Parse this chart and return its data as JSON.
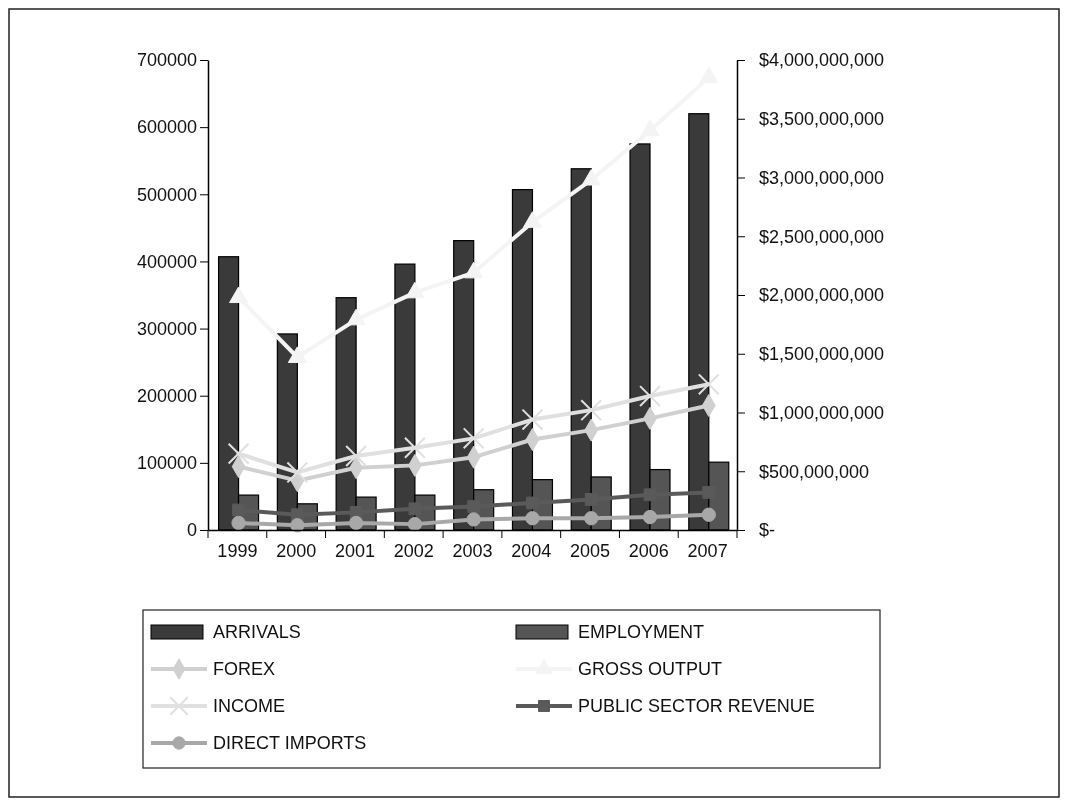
{
  "chart_data": {
    "type": "bar",
    "categories": [
      "1999",
      "2000",
      "2001",
      "2002",
      "2003",
      "2004",
      "2005",
      "2006",
      "2007"
    ],
    "series": [
      {
        "name": "ARRIVALS",
        "color": "#3a3a3a",
        "values": [
          407000,
          292000,
          346000,
          396000,
          431000,
          507000,
          538000,
          575000,
          620000
        ]
      },
      {
        "name": "EMPLOYMENT",
        "color": "#555555",
        "values": [
          52000,
          39000,
          49000,
          52000,
          60000,
          75000,
          79000,
          90000,
          101000
        ]
      },
      {
        "name": "FOREX",
        "type": "line",
        "axis": "y2",
        "marker": "diamond",
        "color": "#d0d0d0",
        "values": [
          540000000,
          420000000,
          530000000,
          550000000,
          620000000,
          770000000,
          850000000,
          950000000,
          1060000000
        ]
      },
      {
        "name": "GROSS OUTPUT",
        "type": "line",
        "axis": "y2",
        "marker": "triangle",
        "color": "#f4f4f4",
        "values": [
          1980000000,
          1470000000,
          1790000000,
          2020000000,
          2190000000,
          2620000000,
          2980000000,
          3400000000,
          3850000000
        ]
      },
      {
        "name": "INCOME",
        "type": "line",
        "axis": "y2",
        "marker": "cross",
        "color": "#e0e0e0",
        "values": [
          650000000,
          490000000,
          630000000,
          700000000,
          780000000,
          940000000,
          1020000000,
          1140000000,
          1240000000
        ]
      },
      {
        "name": "PUBLIC SECTOR REVENUE",
        "type": "line",
        "axis": "y2",
        "marker": "square",
        "color": "#5a5a5a",
        "values": [
          170000000,
          130000000,
          150000000,
          180000000,
          200000000,
          230000000,
          260000000,
          300000000,
          320000000
        ]
      },
      {
        "name": "DIRECT IMPORTS",
        "type": "line",
        "axis": "y2",
        "marker": "circle",
        "color": "#a8a8a8",
        "values": [
          60000000,
          40000000,
          60000000,
          50000000,
          90000000,
          100000000,
          100000000,
          110000000,
          130000000
        ]
      }
    ],
    "ylim": [
      0,
      700000
    ],
    "yticks": [
      0,
      100000,
      200000,
      300000,
      400000,
      500000,
      600000,
      700000
    ],
    "y2lim": [
      0,
      4000000000
    ],
    "y2ticks": [
      {
        "value": 0,
        "label": "$-"
      },
      {
        "value": 500000000,
        "label": "$500,000,000"
      },
      {
        "value": 1000000000,
        "label": "$1,000,000,000"
      },
      {
        "value": 1500000000,
        "label": "$1,500,000,000"
      },
      {
        "value": 2000000000,
        "label": "$2,000,000,000"
      },
      {
        "value": 2500000000,
        "label": "$2,500,000,000"
      },
      {
        "value": 3000000000,
        "label": "$3,000,000,000"
      },
      {
        "value": 3500000000,
        "label": "$3,500,000,000"
      },
      {
        "value": 4000000000,
        "label": "$4,000,000,000"
      }
    ],
    "grid": false,
    "legend": "bottom"
  }
}
